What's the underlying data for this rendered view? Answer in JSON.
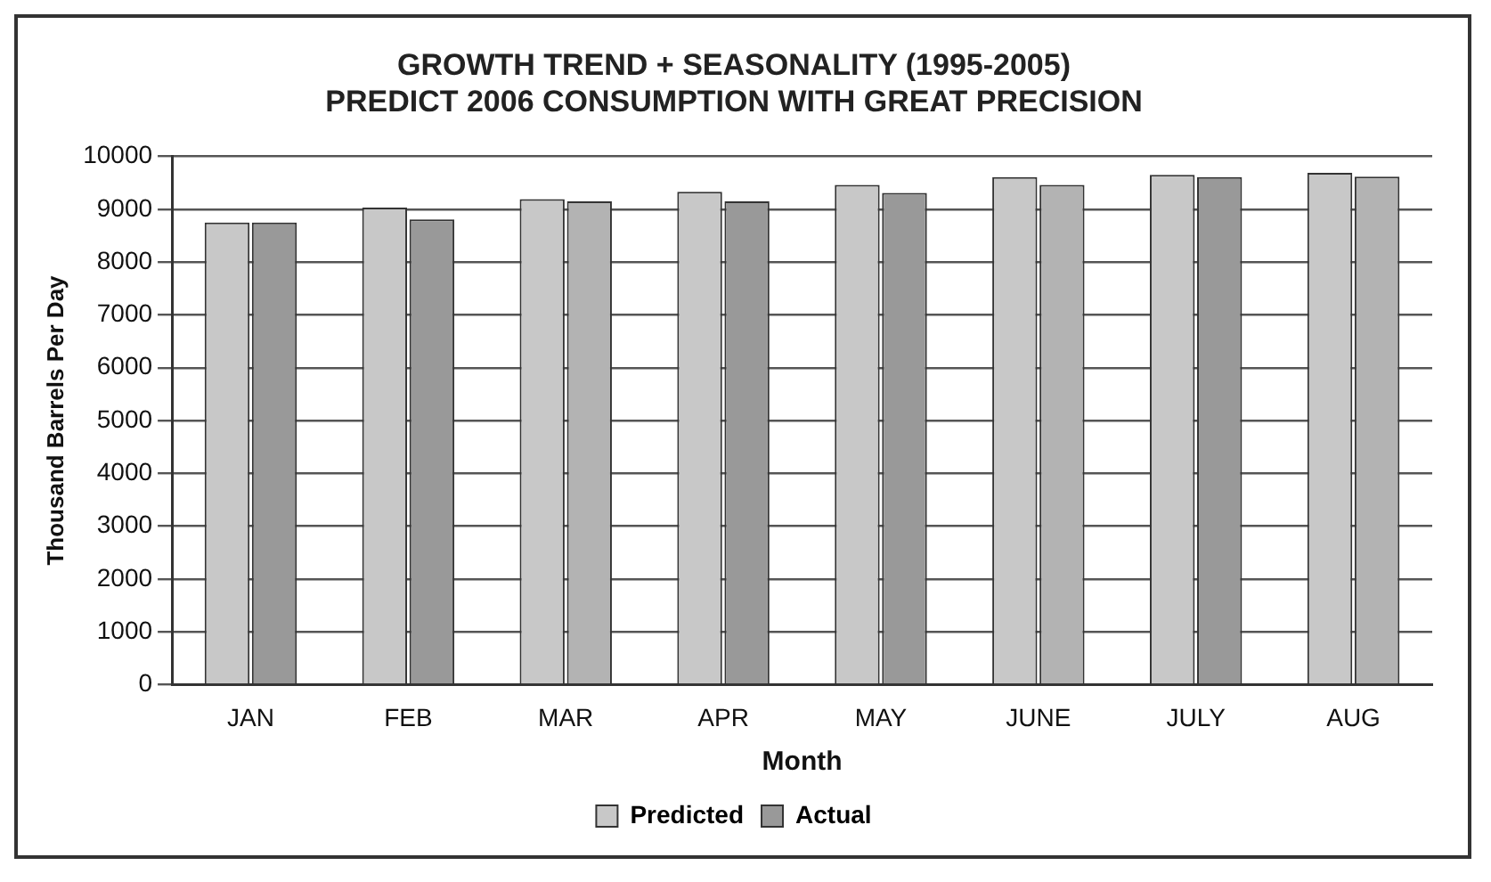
{
  "chart_data": {
    "type": "bar",
    "title": "GROWTH TREND + SEASONALITY (1995-2005)\nPREDICT 2006 CONSUMPTION WITH GREAT PRECISION",
    "xlabel": "Month",
    "ylabel": "Thousand Barrels Per Day",
    "categories": [
      "JAN",
      "FEB",
      "MAR",
      "APR",
      "MAY",
      "JUNE",
      "JULY",
      "AUG"
    ],
    "series": [
      {
        "name": "Predicted",
        "color": "#c8c8c8",
        "values": [
          8750,
          9030,
          9190,
          9330,
          9460,
          9610,
          9650,
          9690
        ]
      },
      {
        "name": "Actual",
        "color": "#999999",
        "colors": [
          "#999999",
          "#999999",
          "#b3b3b3",
          "#999999",
          "#999999",
          "#b3b3b3",
          "#999999",
          "#b3b3b3"
        ],
        "values": [
          8750,
          8810,
          9150,
          9150,
          9310,
          9460,
          9610,
          9620
        ]
      }
    ],
    "ylim": [
      0,
      10000
    ],
    "yticks": [
      0,
      1000,
      2000,
      3000,
      4000,
      5000,
      6000,
      7000,
      8000,
      9000,
      10000
    ],
    "grid": "y",
    "legend": "bottom"
  }
}
